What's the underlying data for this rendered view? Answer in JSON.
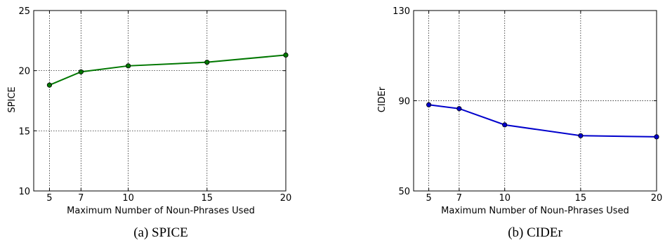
{
  "chart_data": [
    {
      "type": "line",
      "caption": "(a) SPICE",
      "xlabel": "Maximum Number of Noun-Phrases Used",
      "ylabel": "SPICE",
      "xlim": [
        4,
        20
      ],
      "ylim": [
        10,
        25
      ],
      "xticks": [
        5,
        7,
        10,
        15,
        20
      ],
      "yticks": [
        10,
        15,
        20,
        25
      ],
      "grid": true,
      "color": "#007700",
      "series": [
        {
          "x": [
            5,
            7,
            10,
            15,
            20
          ],
          "values": [
            18.8,
            19.9,
            20.4,
            20.7,
            21.3
          ]
        }
      ]
    },
    {
      "type": "line",
      "caption": "(b) CIDEr",
      "xlabel": "Maximum Number of Noun-Phrases Used",
      "ylabel": "CIDEr",
      "xlim": [
        4,
        20
      ],
      "ylim": [
        50,
        130
      ],
      "xticks": [
        5,
        7,
        10,
        15,
        20
      ],
      "yticks": [
        50,
        90,
        130
      ],
      "grid": true,
      "color": "#0000cc",
      "series": [
        {
          "x": [
            5,
            7,
            10,
            15,
            20
          ],
          "values": [
            88.2,
            86.5,
            79.3,
            74.5,
            74.0
          ]
        }
      ]
    }
  ]
}
